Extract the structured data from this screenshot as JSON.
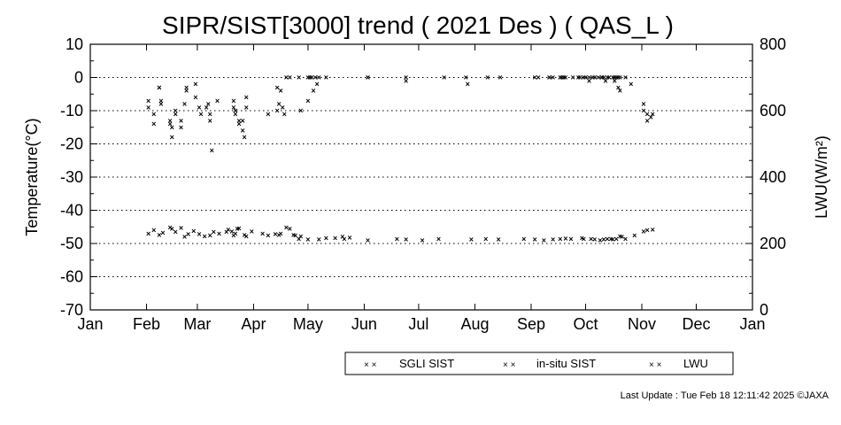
{
  "chart_data": {
    "type": "scatter",
    "title": "SIPR/SIST[3000] trend ( 2021 Des ) ( QAS_L )",
    "ylabel": "Temperature(°C)",
    "y2label": "LWU(W/m²)",
    "xlabel": "",
    "x_ticks": [
      "Jan",
      "Feb",
      "Mar",
      "Apr",
      "May",
      "Jun",
      "Jul",
      "Aug",
      "Sep",
      "Oct",
      "Nov",
      "Dec",
      "Jan"
    ],
    "ylim": [
      -70,
      10
    ],
    "y_ticks": [
      "10",
      "0",
      "-10",
      "-20",
      "-30",
      "-40",
      "-50",
      "-60",
      "-70"
    ],
    "y2lim": [
      0,
      800
    ],
    "y2_ticks": [
      "800",
      "600",
      "400",
      "200",
      "0"
    ],
    "grid": "horizontal dotted",
    "legend_position": "bottom",
    "x_unit": "day of year",
    "series": [
      {
        "name": "SGLI SIST",
        "color": "#ffa500",
        "marker": "×",
        "axis": "left",
        "points": [
          [
            32,
            -9
          ],
          [
            35,
            -14
          ],
          [
            38,
            -3
          ],
          [
            39,
            -7
          ],
          [
            44,
            -13
          ],
          [
            45,
            -18
          ],
          [
            47,
            -10
          ],
          [
            50,
            -15
          ],
          [
            52,
            -8
          ],
          [
            53,
            -4
          ],
          [
            58,
            -6
          ],
          [
            61,
            -11
          ],
          [
            64,
            -9
          ],
          [
            66,
            -13
          ],
          [
            67,
            -22
          ],
          [
            70,
            -7
          ],
          [
            79,
            -7
          ],
          [
            80,
            -10
          ],
          [
            82,
            -14
          ],
          [
            84,
            -16
          ],
          [
            85,
            -18
          ],
          [
            86,
            -9
          ],
          [
            98,
            -11
          ],
          [
            103,
            -10
          ],
          [
            104,
            -8
          ],
          [
            107,
            -11
          ],
          [
            116,
            -10
          ],
          [
            120,
            -7
          ],
          [
            123,
            -4
          ],
          [
            125,
            -2
          ],
          [
            153,
            0
          ],
          [
            174,
            -1
          ],
          [
            208,
            -2
          ],
          [
            226,
            0
          ],
          [
            253,
            0
          ],
          [
            259,
            0
          ],
          [
            273,
            0
          ],
          [
            275,
            -1
          ],
          [
            282,
            0
          ],
          [
            284,
            -1
          ],
          [
            289,
            -1
          ],
          [
            291,
            -3
          ],
          [
            292,
            -4
          ],
          [
            305,
            -10
          ],
          [
            307,
            -13
          ],
          [
            309,
            -12
          ]
        ]
      },
      {
        "name": "in-situ SIST",
        "color": "#ff0000",
        "marker": "×",
        "axis": "left",
        "points": [
          [
            32,
            -7
          ],
          [
            35,
            -11
          ],
          [
            38,
            -3
          ],
          [
            39,
            -8
          ],
          [
            44,
            -14
          ],
          [
            45,
            -15
          ],
          [
            47,
            -11
          ],
          [
            50,
            -13
          ],
          [
            53,
            -3
          ],
          [
            58,
            -2
          ],
          [
            60,
            -9
          ],
          [
            65,
            -8
          ],
          [
            66,
            -11
          ],
          [
            79,
            -9
          ],
          [
            80,
            -11
          ],
          [
            82,
            -13
          ],
          [
            84,
            -13
          ],
          [
            86,
            -6
          ],
          [
            103,
            -3
          ],
          [
            105,
            -4
          ],
          [
            106,
            -9
          ],
          [
            108,
            0
          ],
          [
            110,
            0
          ],
          [
            115,
            0
          ],
          [
            120,
            0
          ],
          [
            121,
            0
          ],
          [
            122,
            0
          ],
          [
            124,
            0
          ],
          [
            126,
            0
          ],
          [
            130,
            0
          ],
          [
            153,
            0
          ],
          [
            174,
            0
          ],
          [
            195,
            0
          ],
          [
            207,
            0
          ],
          [
            219,
            0
          ],
          [
            245,
            0
          ],
          [
            247,
            0
          ],
          [
            253,
            0
          ],
          [
            255,
            0
          ],
          [
            259,
            0
          ],
          [
            260,
            0
          ],
          [
            261,
            0
          ],
          [
            262,
            0
          ],
          [
            266,
            0
          ],
          [
            269,
            0
          ],
          [
            270,
            0
          ],
          [
            272,
            0
          ],
          [
            275,
            0
          ],
          [
            277,
            0
          ],
          [
            278,
            0
          ],
          [
            280,
            0
          ],
          [
            282,
            0
          ],
          [
            283,
            0
          ],
          [
            285,
            0
          ],
          [
            286,
            0
          ],
          [
            288,
            0
          ],
          [
            289,
            0
          ],
          [
            290,
            0
          ],
          [
            291,
            0
          ],
          [
            292,
            0
          ],
          [
            295,
            0
          ],
          [
            298,
            -2
          ],
          [
            305,
            -8
          ],
          [
            307,
            -11
          ],
          [
            310,
            -11
          ]
        ]
      },
      {
        "name": "LWU",
        "color": "#0000ff",
        "marker": "×",
        "axis": "right",
        "points": [
          [
            32,
            230
          ],
          [
            35,
            240
          ],
          [
            38,
            225
          ],
          [
            40,
            232
          ],
          [
            44,
            248
          ],
          [
            45,
            244
          ],
          [
            47,
            235
          ],
          [
            50,
            247
          ],
          [
            52,
            220
          ],
          [
            54,
            228
          ],
          [
            57,
            238
          ],
          [
            60,
            228
          ],
          [
            63,
            222
          ],
          [
            66,
            224
          ],
          [
            68,
            235
          ],
          [
            71,
            230
          ],
          [
            75,
            235
          ],
          [
            76,
            242
          ],
          [
            78,
            236
          ],
          [
            79,
            224
          ],
          [
            80,
            230
          ],
          [
            81,
            244
          ],
          [
            82,
            246
          ],
          [
            85,
            225
          ],
          [
            86,
            222
          ],
          [
            89,
            236
          ],
          [
            95,
            230
          ],
          [
            98,
            224
          ],
          [
            102,
            228
          ],
          [
            104,
            226
          ],
          [
            105,
            230
          ],
          [
            108,
            248
          ],
          [
            110,
            244
          ],
          [
            112,
            226
          ],
          [
            113,
            224
          ],
          [
            115,
            214
          ],
          [
            116,
            222
          ],
          [
            120,
            212
          ],
          [
            126,
            212
          ],
          [
            130,
            216
          ],
          [
            135,
            216
          ],
          [
            139,
            220
          ],
          [
            140,
            214
          ],
          [
            143,
            218
          ],
          [
            153,
            210
          ],
          [
            169,
            213
          ],
          [
            174,
            212
          ],
          [
            183,
            210
          ],
          [
            192,
            214
          ],
          [
            210,
            212
          ],
          [
            218,
            214
          ],
          [
            225,
            212
          ],
          [
            239,
            214
          ],
          [
            245,
            212
          ],
          [
            250,
            210
          ],
          [
            255,
            212
          ],
          [
            259,
            214
          ],
          [
            262,
            215
          ],
          [
            265,
            214
          ],
          [
            271,
            216
          ],
          [
            272,
            214
          ],
          [
            276,
            214
          ],
          [
            278,
            212
          ],
          [
            281,
            210
          ],
          [
            283,
            212
          ],
          [
            285,
            214
          ],
          [
            287,
            214
          ],
          [
            288,
            212
          ],
          [
            290,
            213
          ],
          [
            292,
            222
          ],
          [
            293,
            220
          ],
          [
            295,
            214
          ],
          [
            300,
            224
          ],
          [
            305,
            236
          ],
          [
            307,
            240
          ],
          [
            310,
            241
          ]
        ]
      }
    ]
  },
  "legend": {
    "items": [
      {
        "label": "SGLI SIST",
        "color": "#ffa500",
        "marker": "× ×"
      },
      {
        "label": "in-situ SIST",
        "color": "#ff0000",
        "marker": "× ×"
      },
      {
        "label": "LWU",
        "color": "#0000ff",
        "marker": "× ×"
      }
    ]
  },
  "footer": {
    "last_update": "Last Update : Tue Feb 18 12:11:42 2025  ©JAXA"
  }
}
